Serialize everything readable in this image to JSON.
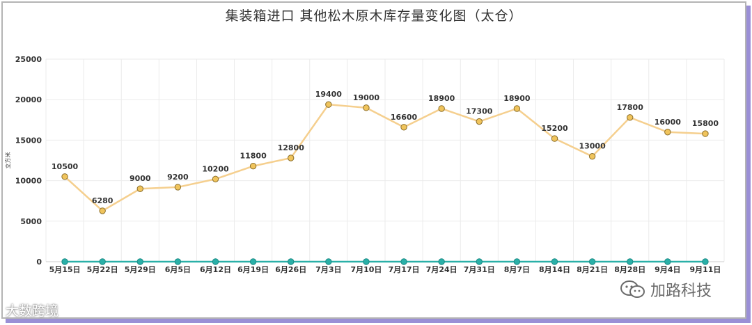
{
  "chart_data": {
    "type": "line",
    "title": "集装箱进口 其他松木原木库存量变化图（太仓）",
    "ylabel": "立方米",
    "xlabel": "",
    "ylim": [
      0,
      25000
    ],
    "yticks": [
      "0",
      "5000",
      "10000",
      "15000",
      "20000",
      "25000"
    ],
    "grid": true,
    "categories": [
      "5月15日",
      "5月22日",
      "5月29日",
      "6月5日",
      "6月12日",
      "6月19日",
      "6月26日",
      "7月3日",
      "7月10日",
      "7月17日",
      "7月24日",
      "7月31日",
      "8月7日",
      "8月14日",
      "8月21日",
      "8月28日",
      "9月4日",
      "9月11日"
    ],
    "series": [
      {
        "values": [
          10500,
          6280,
          9000,
          9200,
          10200,
          11800,
          12800,
          19400,
          19000,
          16600,
          18900,
          17300,
          18900,
          15200,
          13000,
          17800,
          16000,
          15800
        ],
        "labels": [
          "10500",
          "6280",
          "9000",
          "9200",
          "10200",
          "11800",
          "12800",
          "19400",
          "19000",
          "16600",
          "18900",
          "17300",
          "18900",
          "15200",
          "13000",
          "17800",
          "16000",
          "15800"
        ],
        "color": "#f5cf8e",
        "marker_fill": "#f0c45c",
        "marker_stroke": "#8a6d2a"
      },
      {
        "values": [
          0,
          0,
          0,
          0,
          0,
          0,
          0,
          0,
          0,
          0,
          0,
          0,
          0,
          0,
          0,
          0,
          0,
          0
        ],
        "color": "#2ab0a8",
        "marker_fill": "#2ab0a8",
        "marker_stroke": "#1a8a84"
      }
    ]
  },
  "watermarks": {
    "left": "大数跨境",
    "right": "加路科技"
  },
  "colors": {
    "grid": "#ebebeb",
    "axis_text": "#333333",
    "frame_shadow": "#9a8fd6"
  }
}
